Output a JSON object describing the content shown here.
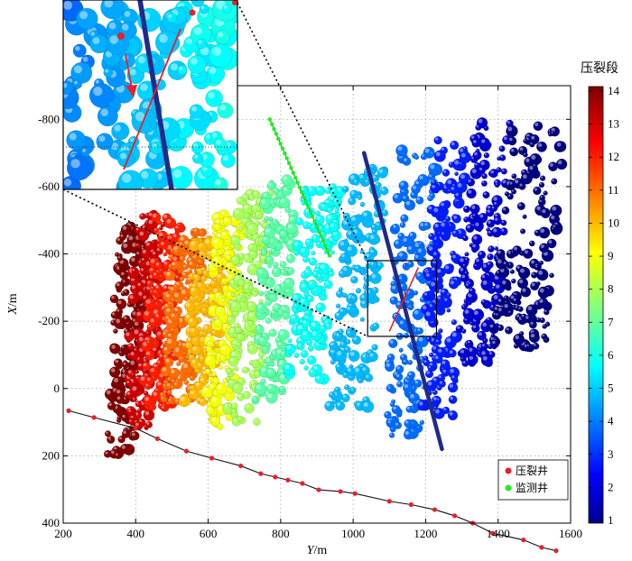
{
  "chart_data": {
    "type": "scatter",
    "xlabel_var": "Y",
    "xlabel_unit": "/m",
    "ylabel_var": "X",
    "ylabel_unit": "/m",
    "xlim": [
      200,
      1600
    ],
    "ylim": [
      -900,
      400
    ],
    "y_reversed": true,
    "xticks": [
      200,
      400,
      600,
      800,
      1000,
      1200,
      1400,
      1600
    ],
    "yticks": [
      -800,
      -600,
      -400,
      -200,
      0,
      200,
      400
    ],
    "grid": true,
    "colorbar": {
      "title": "压裂段",
      "min": 1,
      "max": 14,
      "ticks": [
        1,
        2,
        3,
        4,
        5,
        6,
        7,
        8,
        9,
        10,
        11,
        12,
        13,
        14
      ]
    },
    "legend": {
      "position": "bottom-right",
      "entries": [
        {
          "label": "压裂井",
          "color": "#e8202a"
        },
        {
          "label": "监测井",
          "color": "#22ee22"
        }
      ]
    },
    "frac_well_points": [
      [
        215,
        66
      ],
      [
        285,
        86
      ],
      [
        400,
        118
      ],
      [
        460,
        149
      ],
      [
        540,
        186
      ],
      [
        610,
        207
      ],
      [
        690,
        230
      ],
      [
        745,
        253
      ],
      [
        785,
        263
      ],
      [
        820,
        272
      ],
      [
        860,
        282
      ],
      [
        905,
        301
      ],
      [
        965,
        306
      ],
      [
        1005,
        312
      ],
      [
        1100,
        335
      ],
      [
        1160,
        345
      ],
      [
        1225,
        360
      ],
      [
        1280,
        378
      ],
      [
        1330,
        400
      ],
      [
        1385,
        430
      ],
      [
        1470,
        450
      ],
      [
        1520,
        472
      ],
      [
        1560,
        482
      ]
    ],
    "monitor_well_segment": [
      [
        770,
        -800
      ],
      [
        935,
        -395
      ]
    ],
    "stage_clusters": [
      {
        "stage": 14,
        "y_range": [
          330,
          420
        ],
        "x_range": [
          -480,
          200
        ]
      },
      {
        "stage": 13,
        "y_range": [
          380,
          470
        ],
        "x_range": [
          -520,
          120
        ]
      },
      {
        "stage": 12,
        "y_range": [
          430,
          520
        ],
        "x_range": [
          -520,
          60
        ]
      },
      {
        "stage": 11,
        "y_range": [
          480,
          580
        ],
        "x_range": [
          -480,
          40
        ]
      },
      {
        "stage": 10,
        "y_range": [
          540,
          640
        ],
        "x_range": [
          -440,
          40
        ]
      },
      {
        "stage": 9,
        "y_range": [
          600,
          690
        ],
        "x_range": [
          -520,
          120
        ]
      },
      {
        "stage": 8,
        "y_range": [
          660,
          760
        ],
        "x_range": [
          -580,
          100
        ]
      },
      {
        "stage": 7,
        "y_range": [
          740,
          830
        ],
        "x_range": [
          -620,
          40
        ]
      },
      {
        "stage": 6,
        "y_range": [
          830,
          950
        ],
        "x_range": [
          -600,
          -20
        ]
      },
      {
        "stage": 5,
        "y_range": [
          950,
          1080
        ],
        "x_range": [
          -660,
          60
        ]
      },
      {
        "stage": 4,
        "y_range": [
          1100,
          1220
        ],
        "x_range": [
          -720,
          140
        ]
      },
      {
        "stage": 3,
        "y_range": [
          1200,
          1300
        ],
        "x_range": [
          -740,
          80
        ]
      },
      {
        "stage": 2,
        "y_range": [
          1300,
          1420
        ],
        "x_range": [
          -790,
          -60
        ]
      },
      {
        "stage": 1,
        "y_range": [
          1400,
          1570
        ],
        "x_range": [
          -780,
          -120
        ]
      }
    ],
    "blue_line": [
      [
        1030,
        -700
      ],
      [
        1245,
        180
      ]
    ],
    "inset_box": {
      "y_range": [
        1040,
        1230
      ],
      "x_range": [
        -380,
        -155
      ]
    }
  }
}
